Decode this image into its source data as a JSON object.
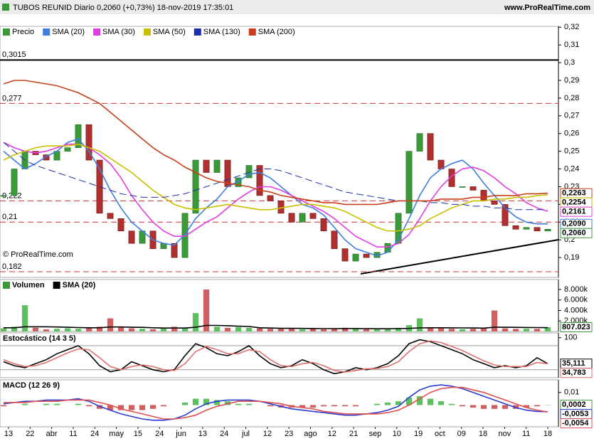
{
  "header": {
    "title": "TUBOS REUNID Diario 0,2060 (+0,73%) 18-nov-2019 17:35:01",
    "site": "www.ProRealTime.com"
  },
  "copyright": "© ProRealTime.com",
  "x_tick_labels": [
    "13",
    "22",
    "abr",
    "11",
    "24",
    "may",
    "15",
    "24",
    "jun",
    "13",
    "24",
    "jul",
    "12",
    "23",
    "ago",
    "12",
    "21",
    "sep",
    "10",
    "19",
    "oct",
    "09",
    "18",
    "nov",
    "11",
    "18"
  ],
  "chart_data": [
    {
      "type": "price",
      "ylim": [
        0.1788,
        0.3205
      ],
      "yticks": [
        {
          "value": 0.19,
          "label": "0,19"
        },
        {
          "value": 0.2,
          "label": "0,2"
        },
        {
          "value": 0.21,
          "label": "0,21"
        },
        {
          "value": 0.22,
          "label": "0,22"
        },
        {
          "value": 0.23,
          "label": "0,23"
        },
        {
          "value": 0.24,
          "label": "0,24"
        },
        {
          "value": 0.25,
          "label": "0,25"
        },
        {
          "value": 0.26,
          "label": "0,26"
        },
        {
          "value": 0.27,
          "label": "0,27"
        },
        {
          "value": 0.28,
          "label": "0,28"
        },
        {
          "value": 0.29,
          "label": "0,29"
        },
        {
          "value": 0.3,
          "label": "0,3"
        },
        {
          "value": 0.31,
          "label": "0,31"
        },
        {
          "value": 0.32,
          "label": "0,32"
        }
      ],
      "levels": [
        {
          "value": 0.3015,
          "label": "0,3015",
          "color": "#000000",
          "dashed": false
        },
        {
          "value": 0.277,
          "label": "0,277",
          "color": "#cc3333",
          "dashed": true
        },
        {
          "value": 0.222,
          "label": "0,222",
          "color": "#cc3333",
          "dashed": true
        },
        {
          "value": 0.21,
          "label": "0,21",
          "color": "#cc3333",
          "dashed": true
        },
        {
          "value": 0.182,
          "label": "0,182",
          "color": "#cc3333",
          "dashed": true
        }
      ],
      "series": [
        {
          "name": "Precio",
          "style": "candles",
          "color": "#3a9a3a",
          "up_color": "#3a9a3a",
          "down_color": "#b03030",
          "last_label": "0,2060",
          "values": [
            0.225,
            0.24,
            0.25,
            0.248,
            0.245,
            0.25,
            0.252,
            0.265,
            0.245,
            0.215,
            0.212,
            0.205,
            0.198,
            0.205,
            0.195,
            0.198,
            0.19,
            0.215,
            0.245,
            0.238,
            0.245,
            0.23,
            0.235,
            0.242,
            0.225,
            0.222,
            0.215,
            0.21,
            0.215,
            0.212,
            0.205,
            0.195,
            0.188,
            0.192,
            0.19,
            0.193,
            0.198,
            0.215,
            0.25,
            0.26,
            0.245,
            0.24,
            0.23,
            0.23,
            0.228,
            0.222,
            0.22,
            0.208,
            0.206,
            0.207,
            0.205,
            0.206
          ]
        },
        {
          "name": "SMA (20)",
          "style": "line",
          "color": "#3d7fe0",
          "last_label": "0,2090",
          "values": [
            0.25,
            0.245,
            0.24,
            0.243,
            0.247,
            0.25,
            0.255,
            0.257,
            0.25,
            0.24,
            0.228,
            0.218,
            0.21,
            0.205,
            0.2,
            0.198,
            0.197,
            0.203,
            0.212,
            0.218,
            0.223,
            0.23,
            0.233,
            0.237,
            0.238,
            0.235,
            0.23,
            0.225,
            0.22,
            0.218,
            0.214,
            0.207,
            0.2,
            0.195,
            0.193,
            0.191,
            0.193,
            0.2,
            0.212,
            0.225,
            0.235,
            0.24,
            0.243,
            0.245,
            0.24,
            0.232,
            0.225,
            0.218,
            0.213,
            0.21,
            0.209,
            0.209
          ]
        },
        {
          "name": "SMA (30)",
          "style": "line",
          "color": "#e23de2",
          "last_label": "0,2161",
          "values": [
            0.255,
            0.252,
            0.25,
            0.249,
            0.25,
            0.252,
            0.254,
            0.254,
            0.252,
            0.248,
            0.243,
            0.235,
            0.225,
            0.217,
            0.21,
            0.205,
            0.202,
            0.202,
            0.206,
            0.21,
            0.213,
            0.218,
            0.223,
            0.227,
            0.23,
            0.23,
            0.228,
            0.225,
            0.222,
            0.219,
            0.216,
            0.212,
            0.207,
            0.202,
            0.199,
            0.196,
            0.196,
            0.198,
            0.203,
            0.212,
            0.222,
            0.23,
            0.236,
            0.24,
            0.241,
            0.239,
            0.235,
            0.23,
            0.226,
            0.221,
            0.218,
            0.2161
          ]
        },
        {
          "name": "SMA (50)",
          "style": "line",
          "color": "#c8c000",
          "last_label": "0,2254",
          "values": [
            0.245,
            0.248,
            0.25,
            0.252,
            0.253,
            0.253,
            0.253,
            0.254,
            0.252,
            0.25,
            0.246,
            0.242,
            0.238,
            0.233,
            0.228,
            0.224,
            0.22,
            0.218,
            0.217,
            0.218,
            0.219,
            0.22,
            0.219,
            0.218,
            0.217,
            0.217,
            0.218,
            0.219,
            0.22,
            0.22,
            0.219,
            0.218,
            0.216,
            0.213,
            0.21,
            0.207,
            0.205,
            0.205,
            0.206,
            0.208,
            0.212,
            0.215,
            0.218,
            0.22,
            0.222,
            0.222,
            0.223,
            0.223,
            0.224,
            0.224,
            0.225,
            0.2254
          ]
        },
        {
          "name": "SMA (130)",
          "style": "dashed",
          "color": "#1f2fa8",
          "values": [
            0.255,
            0.25,
            0.245,
            0.242,
            0.24,
            0.238,
            0.236,
            0.234,
            0.232,
            0.23,
            0.228,
            0.226,
            0.225,
            0.224,
            0.224,
            0.224,
            0.225,
            0.226,
            0.228,
            0.23,
            0.232,
            0.234,
            0.236,
            0.238,
            0.24,
            0.24,
            0.239,
            0.237,
            0.235,
            0.233,
            0.231,
            0.229,
            0.227,
            0.226,
            0.225,
            0.224,
            0.223,
            0.222,
            0.222,
            0.222,
            0.221,
            0.221,
            0.22,
            0.22,
            0.219,
            0.219,
            0.218,
            0.218,
            0.217,
            0.217,
            0.217,
            0.217
          ]
        },
        {
          "name": "SMA (200)",
          "style": "line",
          "color": "#c8401a",
          "last_label": "0,2263",
          "values": [
            0.288,
            0.29,
            0.29,
            0.289,
            0.288,
            0.287,
            0.285,
            0.283,
            0.28,
            0.277,
            0.272,
            0.267,
            0.262,
            0.257,
            0.252,
            0.248,
            0.245,
            0.241,
            0.238,
            0.235,
            0.233,
            0.232,
            0.231,
            0.23,
            0.228,
            0.227,
            0.225,
            0.224,
            0.223,
            0.222,
            0.221,
            0.221,
            0.22,
            0.22,
            0.22,
            0.22,
            0.221,
            0.222,
            0.222,
            0.222,
            0.222,
            0.223,
            0.223,
            0.223,
            0.224,
            0.224,
            0.225,
            0.225,
            0.225,
            0.226,
            0.226,
            0.2263
          ]
        }
      ]
    },
    {
      "type": "volume",
      "ylim": [
        0,
        9900
      ],
      "yticks": [
        {
          "value": 8000,
          "label": "8.000k"
        },
        {
          "value": 6000,
          "label": "6.000k"
        },
        {
          "value": 4000,
          "label": "4.000k"
        },
        {
          "value": 2000,
          "label": "2.000k"
        }
      ],
      "series": [
        {
          "name": "Volumen",
          "style": "bars",
          "color": "#3a9a3a",
          "up_color": "#5cc05c",
          "down_color": "#d06060",
          "last_label": "807.023",
          "values": [
            600,
            900,
            5000,
            700,
            400,
            500,
            600,
            500,
            700,
            900,
            2500,
            800,
            600,
            500,
            400,
            700,
            900,
            600,
            3500,
            8000,
            900,
            700,
            800,
            700,
            600,
            500,
            500,
            600,
            400,
            500,
            400,
            600,
            700,
            500,
            400,
            500,
            600,
            700,
            1200,
            2500,
            800,
            600,
            500,
            400,
            500,
            600,
            4000,
            600,
            500,
            500,
            500,
            807.023
          ]
        },
        {
          "name": "SMA (20)",
          "style": "line",
          "color": "#000000",
          "values": [
            700,
            700,
            900,
            900,
            900,
            850,
            800,
            750,
            700,
            700,
            850,
            850,
            800,
            780,
            700,
            650,
            650,
            650,
            800,
            1150,
            1150,
            1100,
            1000,
            950,
            700,
            650,
            600,
            600,
            580,
            560,
            540,
            540,
            560,
            550,
            530,
            520,
            520,
            540,
            580,
            680,
            700,
            700,
            690,
            680,
            660,
            640,
            800,
            800,
            780,
            760,
            740,
            720
          ]
        }
      ]
    },
    {
      "type": "stochastic",
      "title": "Estocástico (14 3 5)",
      "ylim": [
        0,
        112
      ],
      "yticks": [
        100
      ],
      "levels": [
        80,
        20
      ],
      "series": [
        {
          "style": "line",
          "color": "#000000",
          "last_label": "35,111",
          "values": [
            40,
            30,
            25,
            35,
            45,
            60,
            70,
            80,
            60,
            30,
            15,
            20,
            40,
            30,
            20,
            15,
            20,
            55,
            85,
            75,
            60,
            55,
            65,
            80,
            55,
            35,
            25,
            30,
            45,
            35,
            20,
            10,
            15,
            25,
            20,
            25,
            35,
            55,
            85,
            95,
            90,
            80,
            70,
            60,
            45,
            35,
            25,
            30,
            25,
            30,
            50,
            35.111
          ]
        },
        {
          "style": "line",
          "color": "#e07070",
          "last_label": "34,783",
          "values": [
            45,
            35,
            28,
            30,
            38,
            50,
            62,
            72,
            70,
            50,
            28,
            20,
            28,
            32,
            28,
            20,
            18,
            35,
            65,
            78,
            70,
            60,
            60,
            70,
            65,
            45,
            30,
            28,
            35,
            38,
            30,
            18,
            14,
            18,
            22,
            23,
            28,
            40,
            65,
            85,
            92,
            88,
            78,
            68,
            55,
            42,
            32,
            28,
            28,
            28,
            38,
            34.783
          ]
        }
      ]
    },
    {
      "type": "macd",
      "title": "MACD (12 26 9)",
      "ylim": [
        -0.0172,
        0.02
      ],
      "yticks": [
        {
          "value": 0.01,
          "label": "0,01"
        }
      ],
      "series": [
        {
          "style": "histogram",
          "color": "#3a9a3a",
          "up_color": "#5cc05c",
          "down_color": "#d06060",
          "last_label": "0,0002",
          "values": [
            -0.001,
            0,
            0.001,
            0,
            0.001,
            0.001,
            0,
            0.001,
            -0.001,
            -0.003,
            -0.004,
            -0.004,
            -0.004,
            -0.004,
            -0.003,
            -0.001,
            0,
            0.002,
            0.005,
            0.005,
            0.004,
            0.003,
            0.001,
            0.001,
            0,
            -0.001,
            -0.002,
            -0.002,
            -0.002,
            -0.002,
            -0.001,
            -0.001,
            -0.001,
            -0.001,
            0,
            0.001,
            0.002,
            0.003,
            0.006,
            0.007,
            0.005,
            0.003,
            0.001,
            -0.001,
            -0.002,
            -0.003,
            -0.003,
            -0.003,
            -0.003,
            -0.002,
            -0.001,
            0.0002
          ]
        },
        {
          "style": "line",
          "color": "#2b3bd0",
          "last_label": "-0,0053",
          "values": [
            0.001,
            0.002,
            0.003,
            0.003,
            0.004,
            0.004,
            0.004,
            0.005,
            0.003,
            -0.001,
            -0.004,
            -0.007,
            -0.009,
            -0.011,
            -0.012,
            -0.012,
            -0.011,
            -0.008,
            -0.003,
            0.001,
            0.003,
            0.004,
            0.004,
            0.004,
            0.003,
            0.001,
            -0.001,
            -0.003,
            -0.004,
            -0.005,
            -0.006,
            -0.007,
            -0.008,
            -0.008,
            -0.007,
            -0.006,
            -0.004,
            -0.001,
            0.006,
            0.012,
            0.015,
            0.016,
            0.015,
            0.013,
            0.01,
            0.007,
            0.004,
            0.001,
            -0.002,
            -0.004,
            -0.005,
            -0.0053
          ]
        },
        {
          "style": "line",
          "color": "#e05050",
          "last_label": "-0,0054",
          "values": [
            0.002,
            0.002,
            0.002,
            0.003,
            0.003,
            0.003,
            0.004,
            0.004,
            0.004,
            0.002,
            0,
            -0.003,
            -0.005,
            -0.007,
            -0.009,
            -0.011,
            -0.011,
            -0.01,
            -0.008,
            -0.004,
            -0.001,
            0.001,
            0.003,
            0.003,
            0.003,
            0.002,
            0.001,
            -0.001,
            -0.002,
            -0.003,
            -0.005,
            -0.006,
            -0.007,
            -0.007,
            -0.007,
            -0.007,
            -0.006,
            -0.004,
            0,
            0.005,
            0.01,
            0.013,
            0.014,
            0.014,
            0.012,
            0.01,
            0.007,
            0.004,
            0.001,
            -0.002,
            -0.004,
            -0.0054
          ]
        }
      ]
    }
  ]
}
